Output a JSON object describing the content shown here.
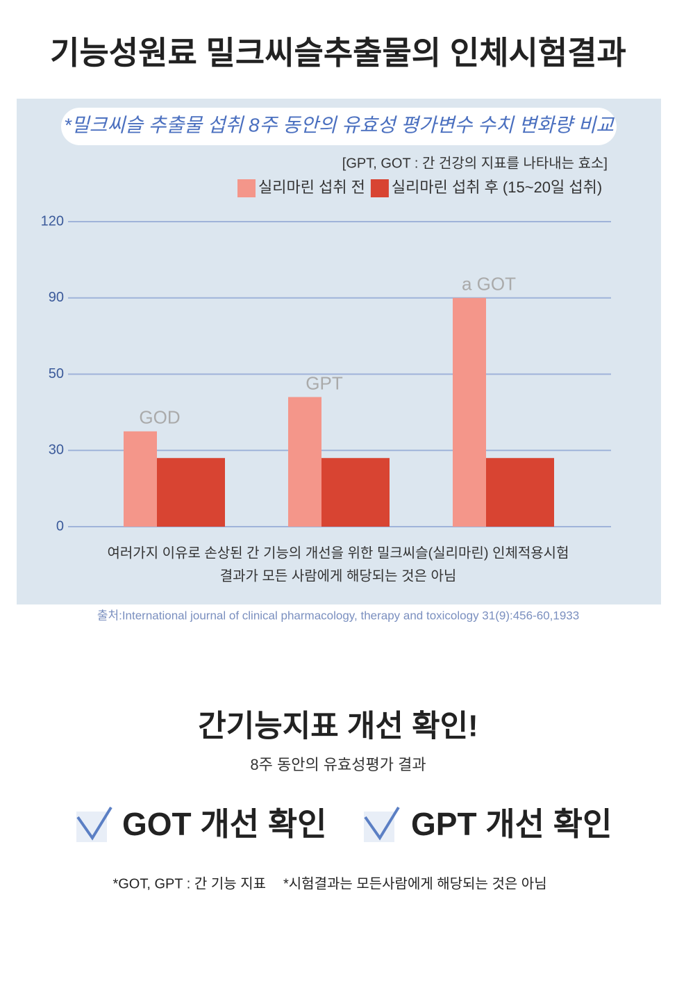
{
  "title": "기능성원료 밀크씨슬추출물의 인체시험결과",
  "chart_data": {
    "type": "bar",
    "subtitle": "*밀크씨슬 추출물 섭취 8주 동안의 유효성 평가변수 수치 변화량 비교",
    "note": "[GPT, GOT : 간 건강의 지표를 나타내는 효소]",
    "categories": [
      "GOD",
      "GPT",
      "a GOT"
    ],
    "series": [
      {
        "name": "실리마린 섭취 전",
        "color": "#f4968a",
        "values": [
          35,
          44,
          90
        ]
      },
      {
        "name": "실리마린 섭취 후 (15~20일 섭취)",
        "color": "#d84432",
        "values": [
          27,
          27,
          27
        ]
      }
    ],
    "ylim": [
      0,
      120
    ],
    "yticks": [
      0,
      30,
      50,
      90,
      120
    ],
    "grid": true,
    "caption": [
      "여러가지 이유로 손상된 간 기능의 개선을 위한 밀크씨슬(실리마린) 인체적용시험",
      "결과가 모든 사람에게 해당되는 것은 아님"
    ]
  },
  "source": "출처:International journal of clinical pharmacology, therapy and toxicology 31(9):456-60,1933",
  "summary": {
    "title": "간기능지표 개선 확인!",
    "subtitle": "8주 동안의 유효성평가 결과",
    "checks": [
      "GOT 개선 확인",
      "GPT 개선 확인"
    ],
    "footnotes": [
      "*GOT, GPT : 간 기능 지표",
      "*시험결과는 모든사람에게 해당되는 것은 아님"
    ]
  }
}
